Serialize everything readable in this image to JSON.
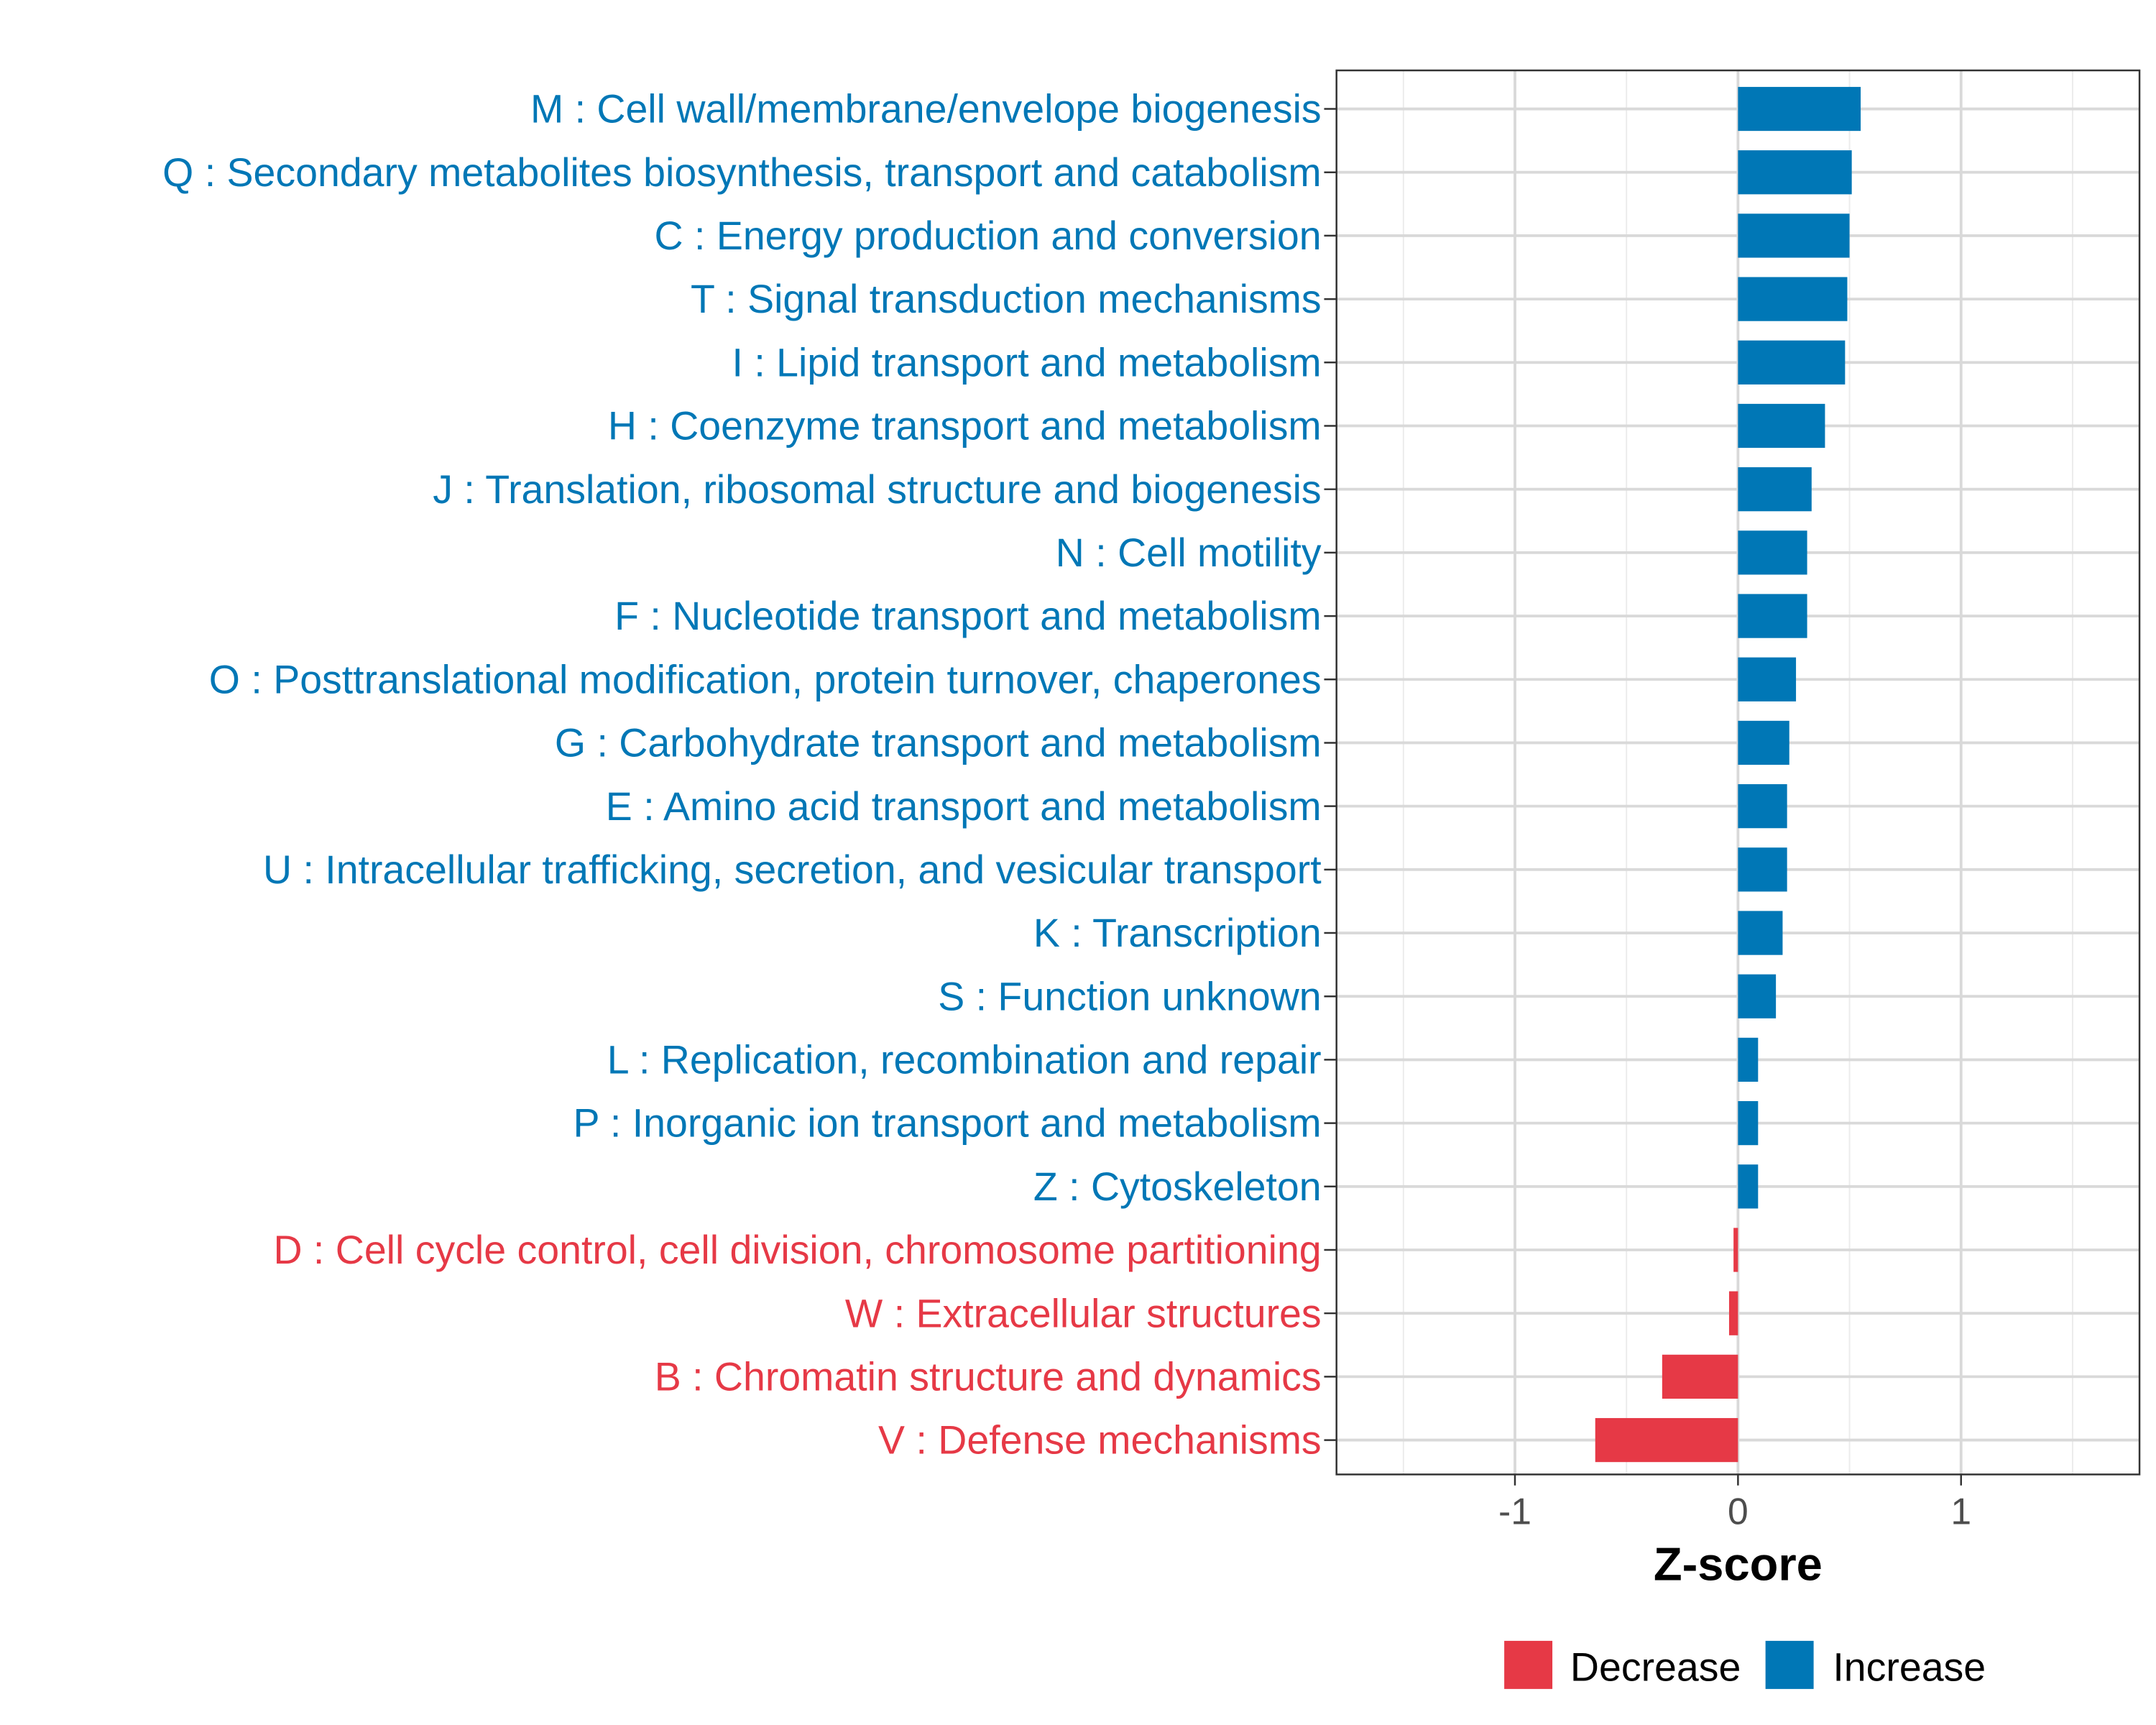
{
  "chart_data": {
    "type": "bar",
    "orientation": "horizontal",
    "title": "",
    "xlabel": "Z-score",
    "ylabel": "",
    "xlim": [
      -1.8,
      1.8
    ],
    "xticks": [
      -1,
      0,
      1
    ],
    "xtick_labels": [
      "-1",
      "0",
      "1"
    ],
    "grid": true,
    "legend": {
      "placement": "bottom",
      "entries": [
        {
          "label": "Decrease",
          "color": "#E63946"
        },
        {
          "label": "Increase",
          "color": "#0077B6"
        }
      ]
    },
    "categories": [
      "M : Cell wall/membrane/envelope biogenesis",
      "Q : Secondary metabolites biosynthesis, transport and catabolism",
      "C : Energy production and conversion",
      "T : Signal transduction mechanisms",
      "I : Lipid transport and metabolism",
      "H : Coenzyme transport and metabolism",
      "J : Translation, ribosomal structure and biogenesis",
      "N : Cell motility",
      "F : Nucleotide transport and metabolism",
      "O : Posttranslational modification, protein turnover, chaperones",
      "G : Carbohydrate transport and metabolism",
      "E : Amino acid transport and metabolism",
      "U : Intracellular trafficking, secretion, and vesicular transport",
      "K : Transcription",
      "S : Function unknown",
      "L : Replication, recombination and repair",
      "P : Inorganic ion transport and metabolism",
      "Z : Cytoskeleton",
      "D : Cell cycle control, cell division, chromosome partitioning",
      "W : Extracellular structures",
      "B : Chromatin structure and dynamics",
      "V : Defense mechanisms"
    ],
    "values": [
      0.55,
      0.51,
      0.5,
      0.49,
      0.48,
      0.39,
      0.33,
      0.31,
      0.31,
      0.26,
      0.23,
      0.22,
      0.22,
      0.2,
      0.17,
      0.09,
      0.09,
      0.09,
      -0.02,
      -0.04,
      -0.34,
      -0.64
    ]
  }
}
